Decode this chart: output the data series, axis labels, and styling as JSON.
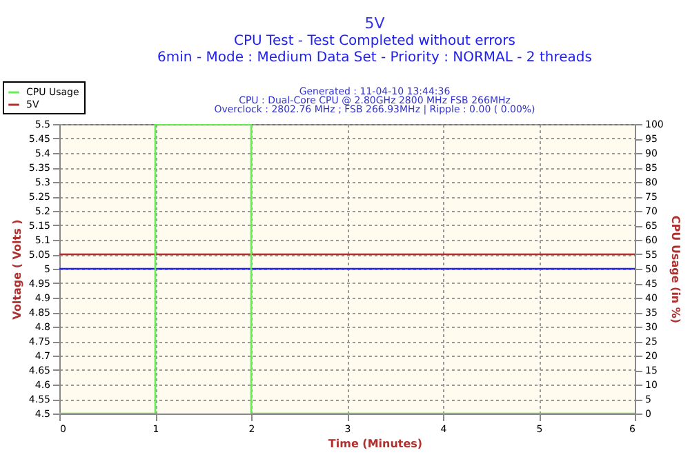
{
  "chart_data": {
    "type": "line",
    "title": "5V",
    "subtitle": [
      "CPU Test - Test Completed without errors",
      "6min - Mode : Medium Data Set - Priority : NORMAL - 2 threads"
    ],
    "annotations": [
      "Generated : 11-04-10 13:44:36",
      "CPU : Dual-Core CPU @ 2.80GHz 2800 MHz FSB 266MHz",
      "Overclock : 2802.76 MHz ; FSB 266.93MHz | Ripple : 0.00 ( 0.00%)"
    ],
    "xlabel": "Time (Minutes)",
    "ylabel": "Voltage ( Volts )",
    "y2label": "CPU Usage (in %)",
    "series": [
      {
        "name": "CPU Usage",
        "color": "#66ee55",
        "axis": "y2",
        "x": [
          0,
          1,
          1,
          2,
          2,
          6
        ],
        "values": [
          0,
          0,
          100,
          100,
          0,
          0
        ]
      },
      {
        "name": "5V",
        "color": "#b03030",
        "x": [
          0,
          6
        ],
        "values": [
          5.05,
          5.05
        ]
      }
    ],
    "ref_lines": [
      {
        "axis": "y",
        "value": 5.0,
        "color": "#2222ee"
      }
    ],
    "xlim": [
      0,
      6
    ],
    "xticks": [
      0,
      1,
      2,
      3,
      4,
      5,
      6
    ],
    "ylim": [
      4.5,
      5.5
    ],
    "yticks": [
      4.5,
      4.55,
      4.6,
      4.65,
      4.7,
      4.75,
      4.8,
      4.85,
      4.9,
      4.95,
      5,
      5.05,
      5.1,
      5.15,
      5.2,
      5.25,
      5.3,
      5.35,
      5.4,
      5.45,
      5.5
    ],
    "y2lim": [
      0,
      100
    ],
    "y2ticks": [
      0,
      5,
      10,
      15,
      20,
      25,
      30,
      35,
      40,
      45,
      50,
      55,
      60,
      65,
      70,
      75,
      80,
      85,
      90,
      95,
      100
    ],
    "grid": true,
    "legend": "top left",
    "line_style": "solid",
    "marker": "none"
  }
}
